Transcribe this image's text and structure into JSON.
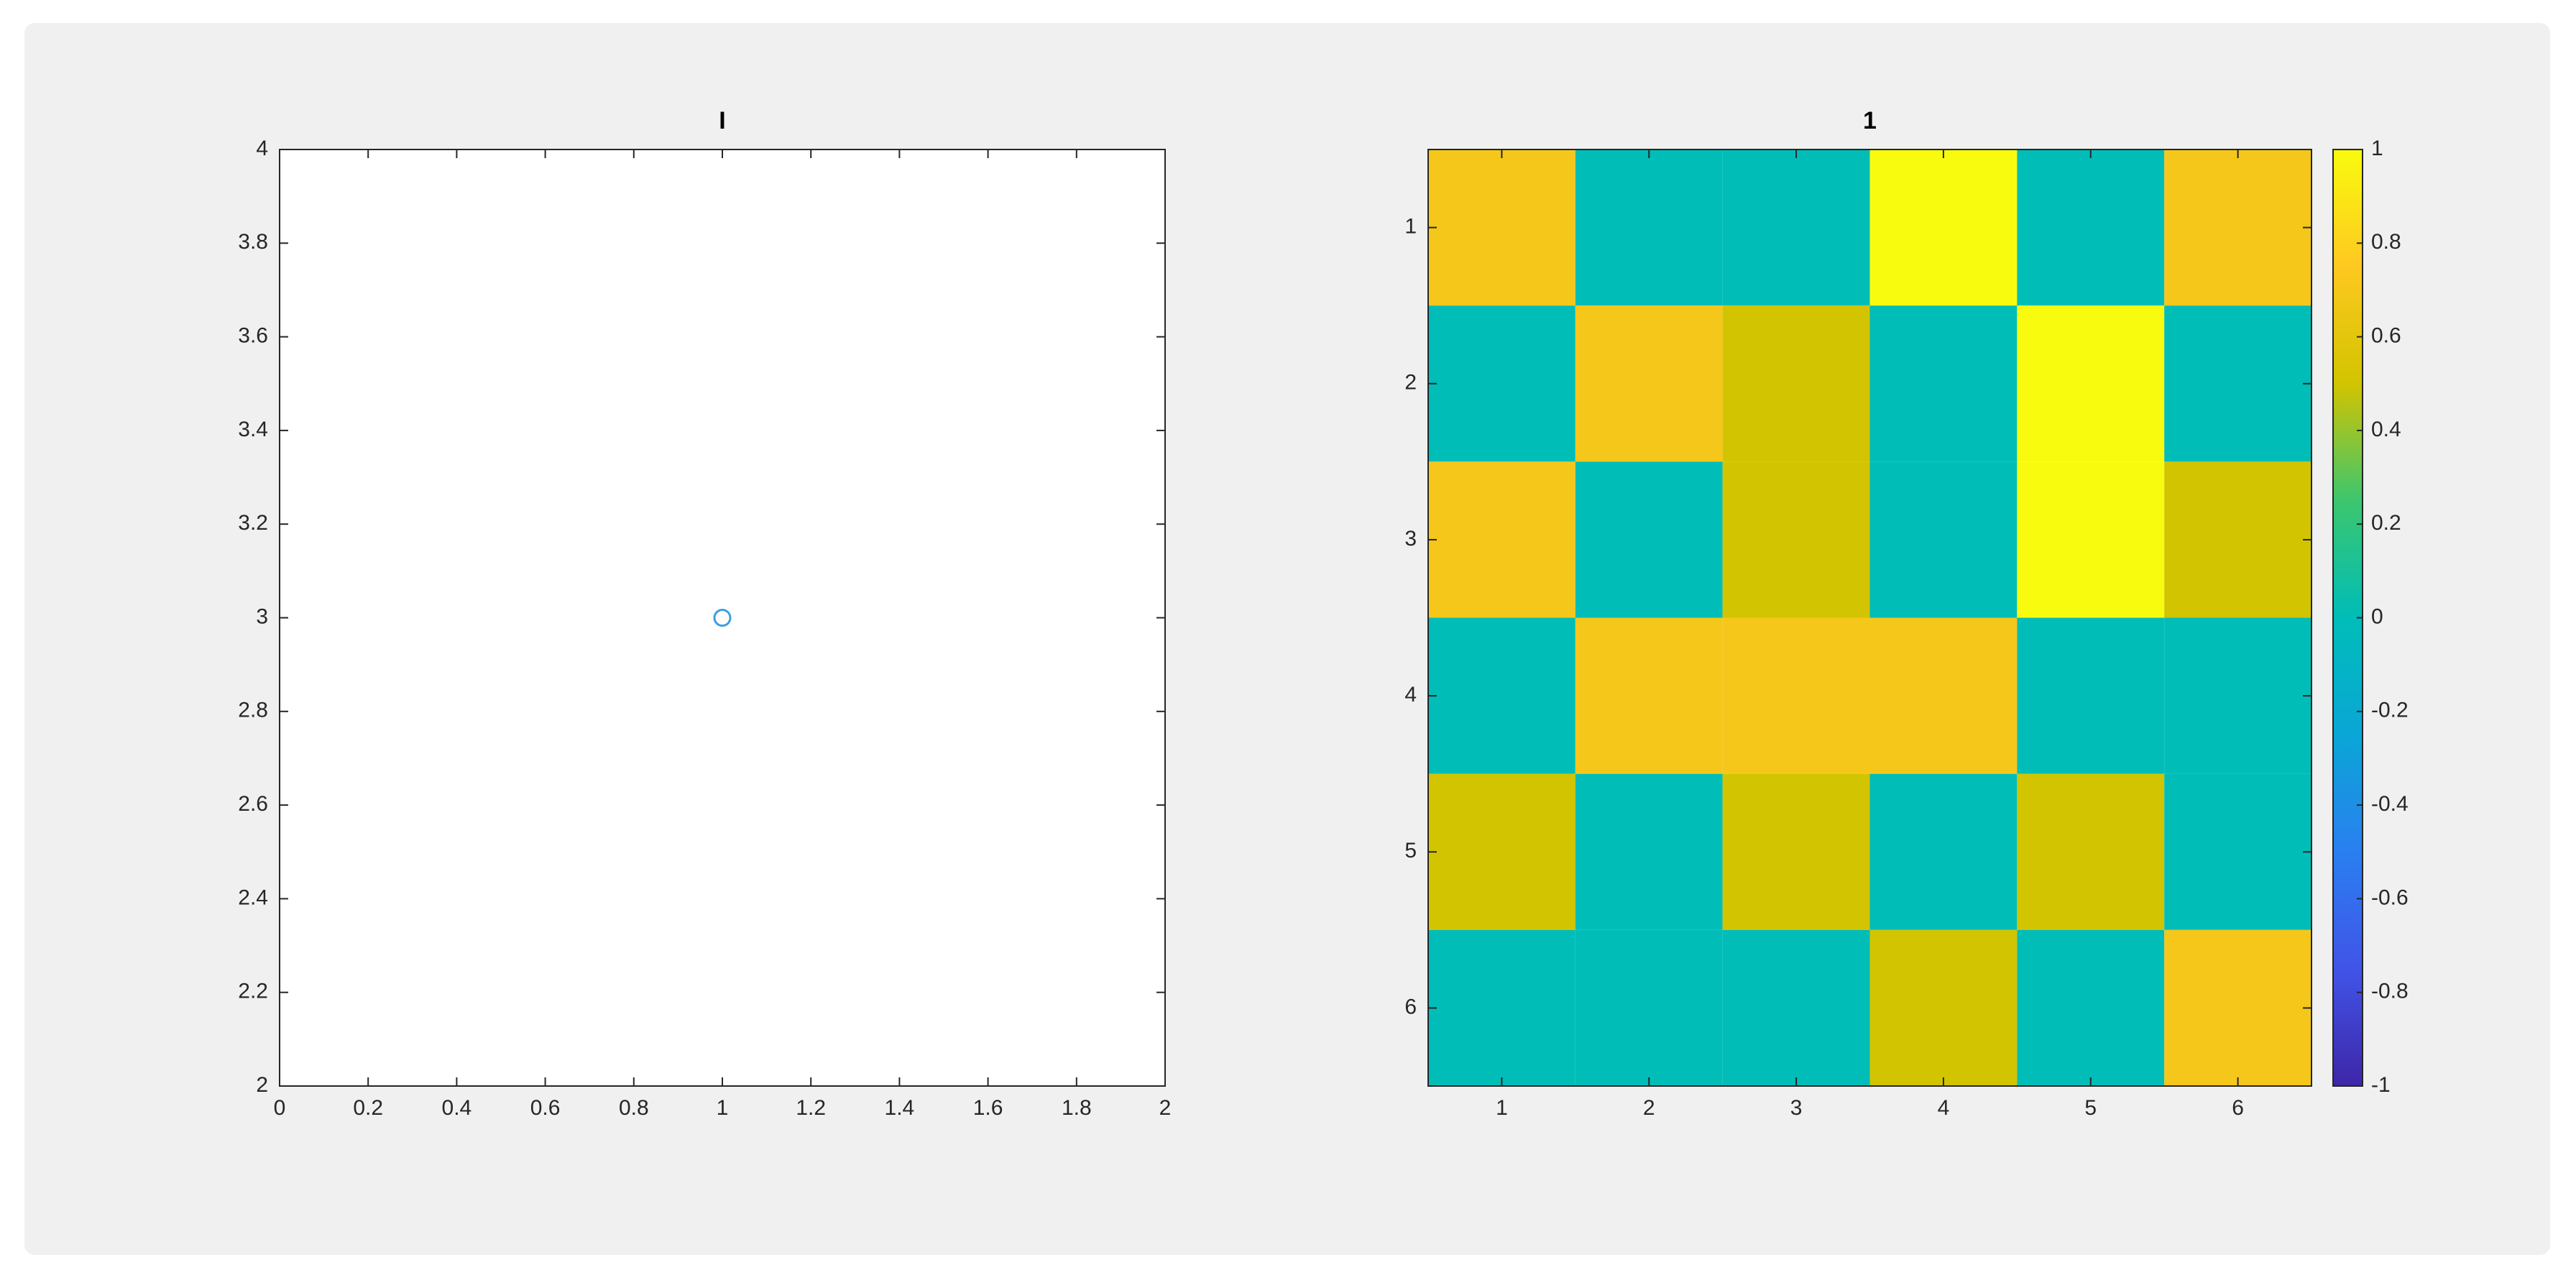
{
  "chart_data": [
    {
      "type": "scatter",
      "title": "I",
      "x": [
        1
      ],
      "y": [
        3
      ],
      "color": "#3b9fe0",
      "xlim": [
        0,
        2
      ],
      "ylim": [
        2,
        4
      ],
      "xticks": [
        0,
        0.2,
        0.4,
        0.6,
        0.8,
        1,
        1.2,
        1.4,
        1.6,
        1.8,
        2
      ],
      "yticks": [
        2,
        2.2,
        2.4,
        2.6,
        2.8,
        3,
        3.2,
        3.4,
        3.6,
        3.8,
        4
      ]
    },
    {
      "type": "heatmap",
      "title": "1",
      "xlim": [
        0.5,
        6.5
      ],
      "ylim": [
        0.5,
        6.5
      ],
      "ydir": "reverse",
      "xticks": [
        1,
        2,
        3,
        4,
        5,
        6
      ],
      "yticks": [
        1,
        2,
        3,
        4,
        5,
        6
      ],
      "values": [
        [
          0.7,
          0,
          0,
          1,
          0,
          0.7
        ],
        [
          0,
          0.7,
          0.5,
          0,
          1,
          0
        ],
        [
          0.7,
          0,
          0.5,
          0,
          1,
          0.5
        ],
        [
          0,
          0.7,
          0.7,
          0.7,
          0,
          0
        ],
        [
          0.5,
          0,
          0.5,
          0,
          0.5,
          0
        ],
        [
          0,
          0,
          0,
          0.5,
          0,
          0.7
        ]
      ],
      "clim": [
        -1,
        1
      ],
      "cticks": [
        -1,
        -0.8,
        -0.6,
        -0.4,
        -0.2,
        0,
        0.2,
        0.4,
        0.6,
        0.8,
        1
      ],
      "colormap": [
        "#3e26a8",
        "#4154e8",
        "#2a7ff0",
        "#0aa6d6",
        "#00bdb8",
        "#3cc66e",
        "#d2c400",
        "#fec820",
        "#f9fb0e"
      ]
    }
  ]
}
